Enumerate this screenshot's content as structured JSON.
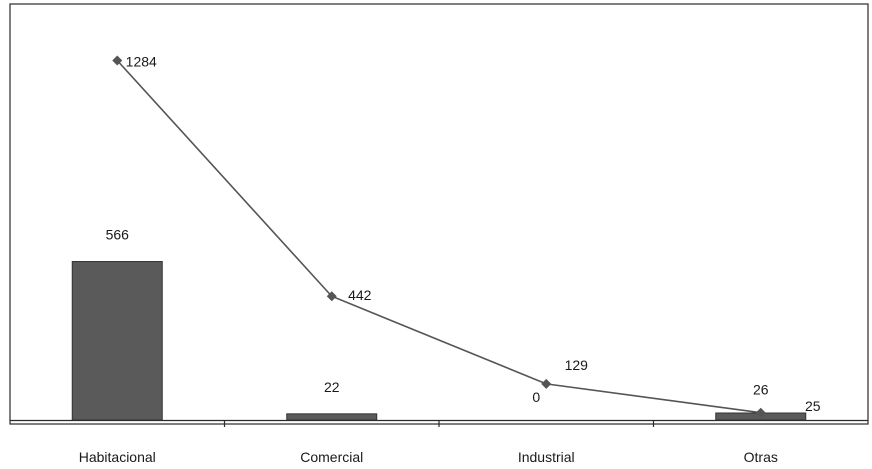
{
  "chart_data": {
    "type": "bar",
    "categories": [
      "Habitacional",
      "Comercial",
      "Industrial",
      "Otras"
    ],
    "series": [
      {
        "type": "bar",
        "values": [
          566,
          22,
          0,
          25
        ],
        "color": "#5a5a5a"
      },
      {
        "type": "line",
        "values": [
          1284,
          442,
          129,
          26
        ],
        "color": "#555555"
      }
    ],
    "ylim": [
      0,
      1350
    ],
    "grid": false,
    "legend": "none"
  }
}
